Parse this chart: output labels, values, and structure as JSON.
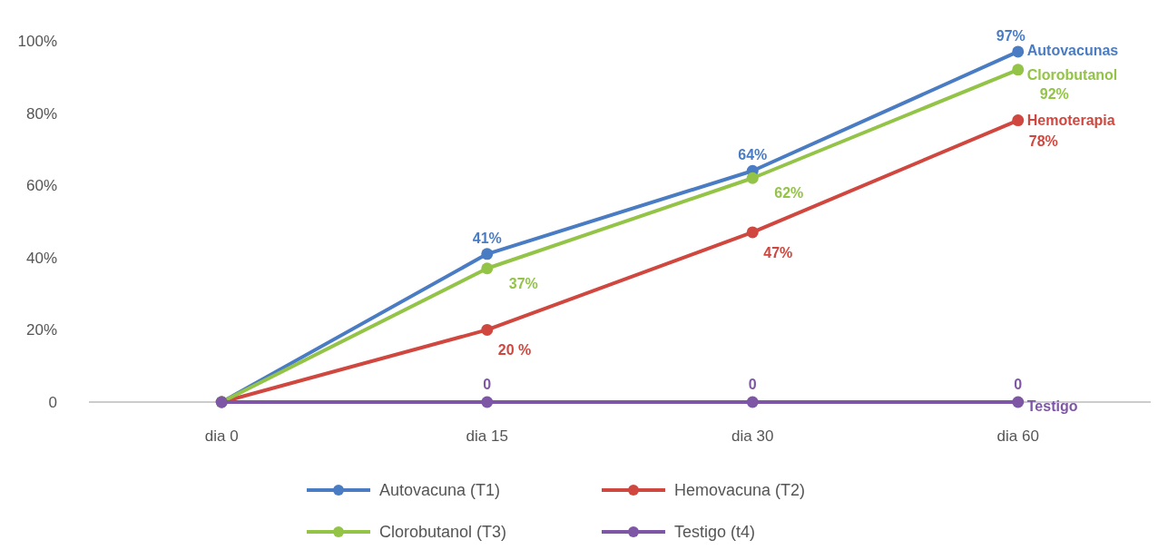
{
  "chart_data": {
    "type": "line",
    "categories": [
      "dia 0",
      "dia 15",
      "dia 30",
      "dia 60"
    ],
    "series": [
      {
        "name": "Autovacuna (T1)",
        "color": "#4a7cc4",
        "values": [
          0,
          41,
          64,
          97
        ],
        "value_labels": [
          null,
          "41%",
          "64%",
          "97%"
        ]
      },
      {
        "name": "Hemovacuna (T2)",
        "color": "#d0473f",
        "values": [
          0,
          20,
          47,
          78
        ],
        "value_labels": [
          null,
          "20 %",
          "47%",
          "78%"
        ]
      },
      {
        "name": "Clorobutanol (T3)",
        "color": "#93c447",
        "values": [
          0,
          37,
          62,
          92
        ],
        "value_labels": [
          null,
          "37%",
          "62%",
          "92%"
        ]
      },
      {
        "name": "Testigo  (t4)",
        "color": "#7e56a6",
        "values": [
          0,
          0,
          0,
          0
        ],
        "value_labels": [
          null,
          "0",
          "0",
          "0"
        ]
      }
    ],
    "ylim": [
      0,
      100
    ],
    "yticks": [
      0,
      {
        "value": 20,
        "label": "20%"
      },
      {
        "value": 40,
        "label": "40%"
      },
      {
        "value": 60,
        "label": "60%"
      },
      {
        "value": 80,
        "label": "80%"
      },
      {
        "value": 100,
        "label": "100%"
      }
    ],
    "annotations": [
      {
        "text": "Autovacunas",
        "x": "dia 60",
        "y": 97
      },
      {
        "text": "Clorobutanol",
        "x": "dia 60",
        "y": 92
      },
      {
        "text": "Hemoterapia",
        "x": "dia 60",
        "y": 78
      },
      {
        "text": "Testigo",
        "x": "dia 60",
        "y": 0
      }
    ],
    "marker": "circle",
    "line_style": "solid",
    "grid": false,
    "legend": "bottom"
  }
}
